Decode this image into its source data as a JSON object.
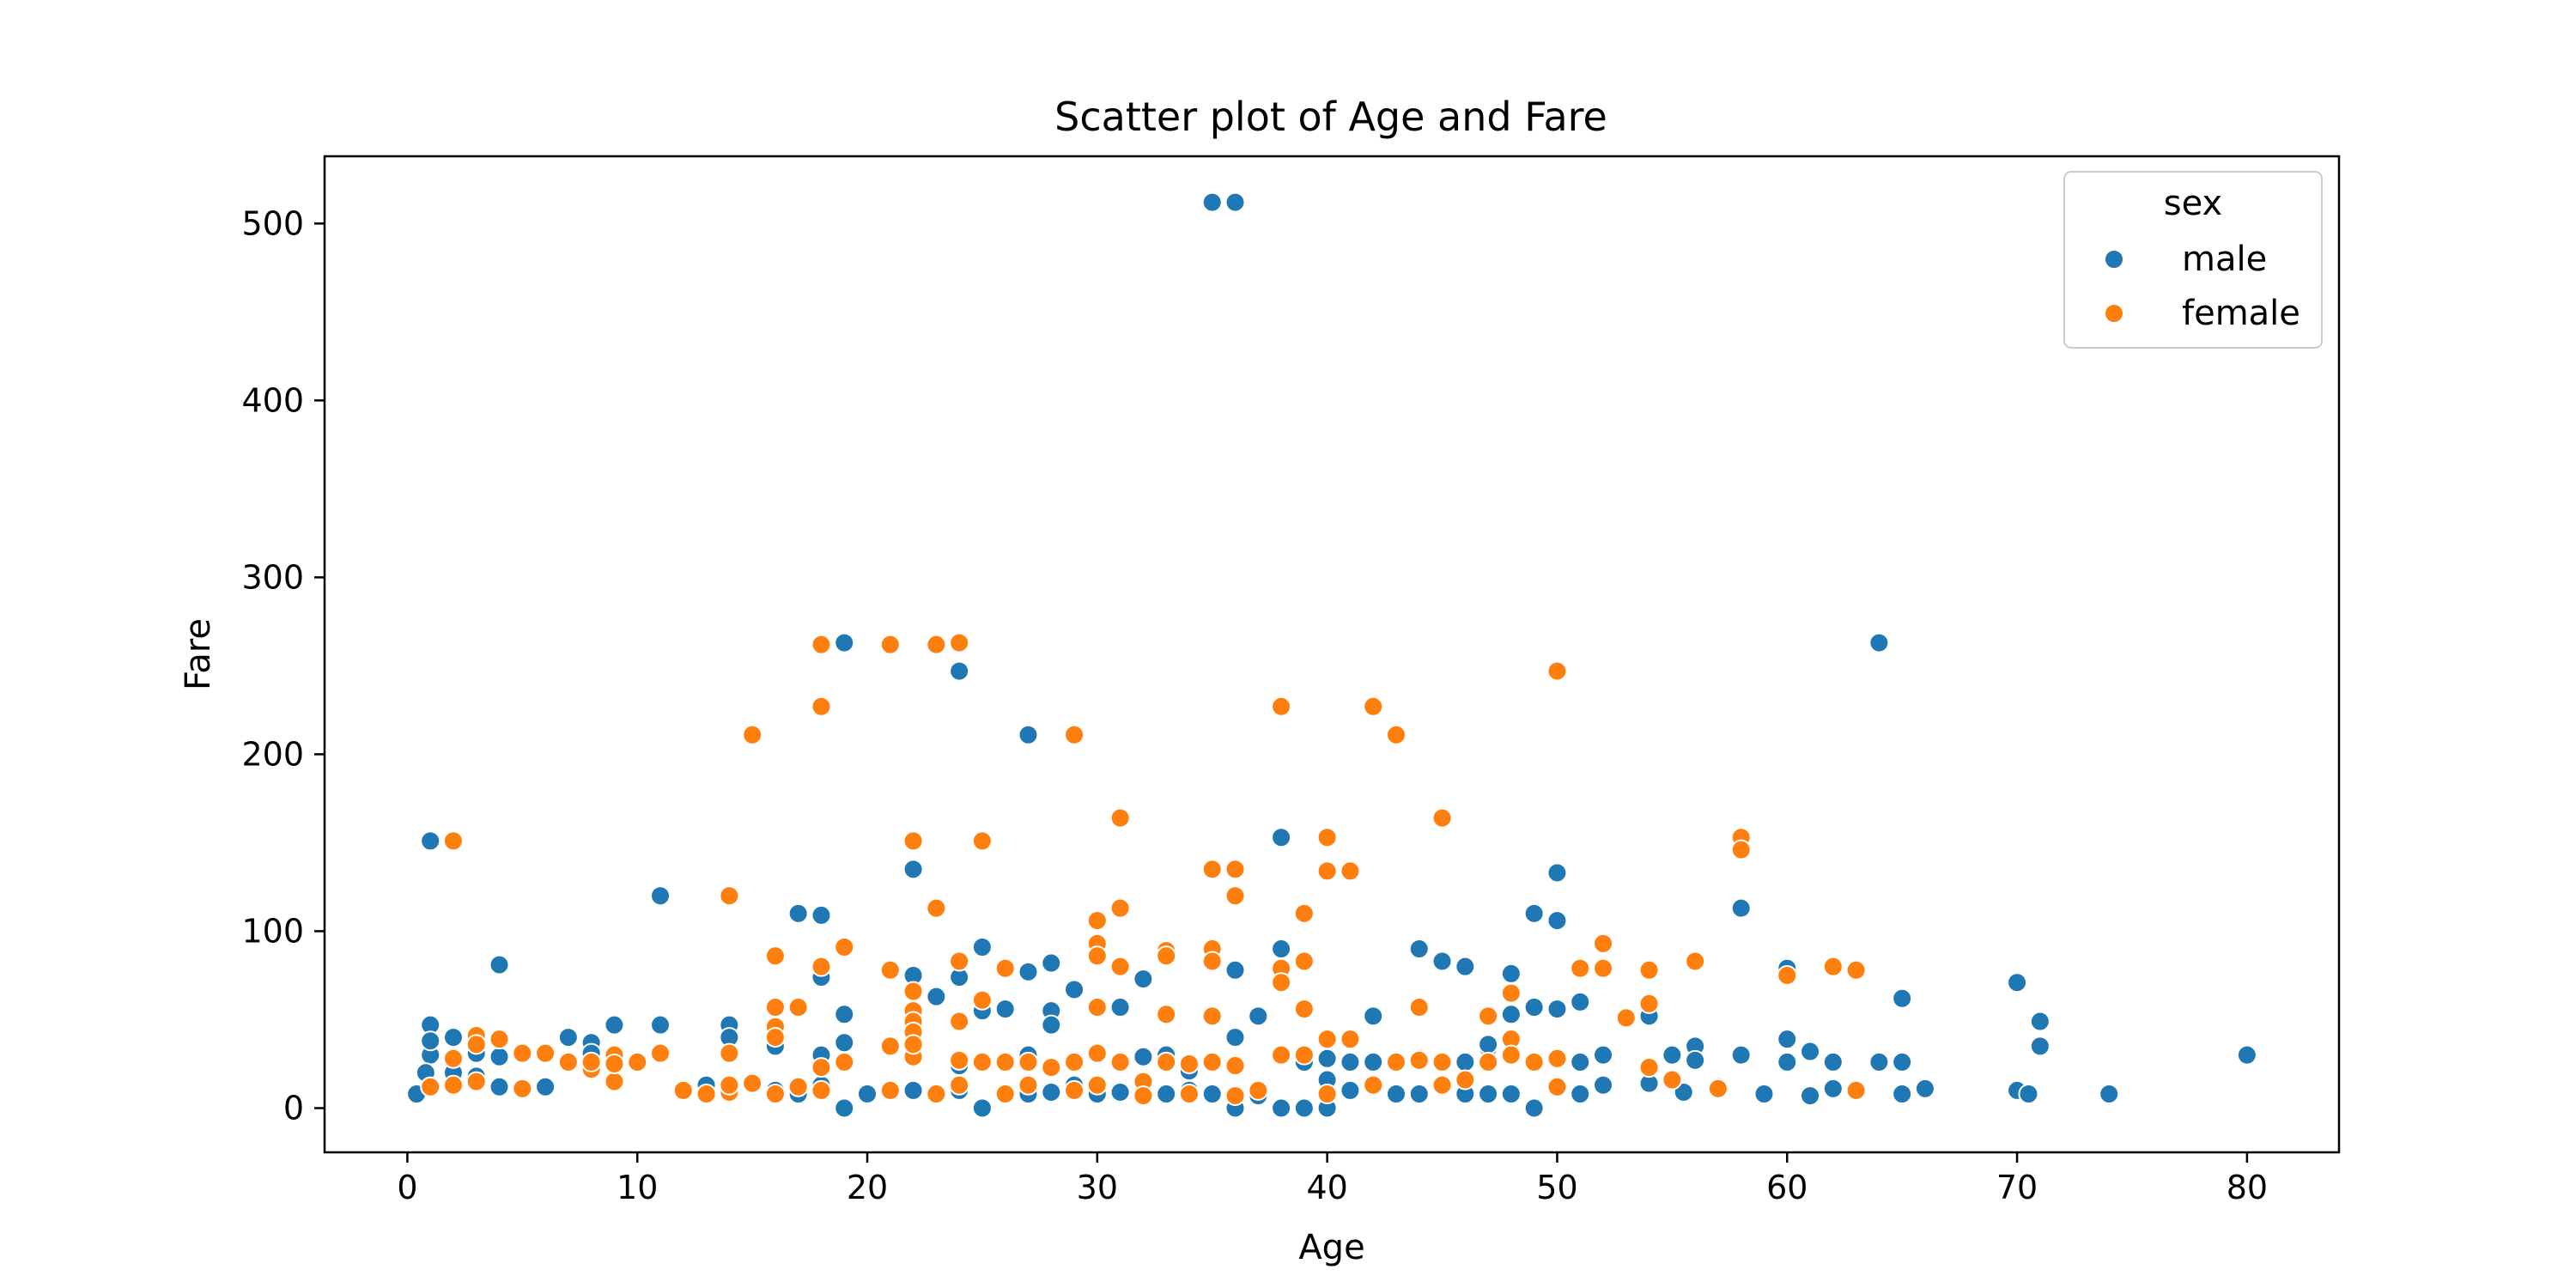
{
  "chart_data": {
    "type": "scatter",
    "title": "Scatter plot of Age and Fare",
    "xlabel": "Age",
    "ylabel": "Fare",
    "xlim": [
      -3.6,
      84
    ],
    "ylim": [
      -25,
      538
    ],
    "xticks": [
      0,
      10,
      20,
      30,
      40,
      50,
      60,
      70,
      80
    ],
    "yticks": [
      0,
      100,
      200,
      300,
      400,
      500
    ],
    "grid": false,
    "legend": {
      "title": "sex",
      "position": "top-right"
    },
    "series": [
      {
        "name": "male",
        "color": "#1f77b4",
        "points": [
          [
            35,
            512
          ],
          [
            36,
            512
          ],
          [
            19,
            263
          ],
          [
            64,
            263
          ],
          [
            24,
            247
          ],
          [
            27,
            211
          ],
          [
            1,
            151
          ],
          [
            38,
            153
          ],
          [
            22,
            135
          ],
          [
            50,
            133
          ],
          [
            11,
            120
          ],
          [
            17,
            110
          ],
          [
            18,
            109
          ],
          [
            58,
            113
          ],
          [
            49,
            110
          ],
          [
            50,
            106
          ],
          [
            25,
            91
          ],
          [
            38,
            90
          ],
          [
            44,
            90
          ],
          [
            4,
            81
          ],
          [
            28,
            82
          ],
          [
            45,
            83
          ],
          [
            27,
            77
          ],
          [
            18,
            74
          ],
          [
            32,
            73
          ],
          [
            60,
            79
          ],
          [
            46,
            80
          ],
          [
            70,
            71
          ],
          [
            48,
            76
          ],
          [
            31,
            57
          ],
          [
            22,
            75
          ],
          [
            23,
            63
          ],
          [
            29,
            67
          ],
          [
            49,
            57
          ],
          [
            51,
            60
          ],
          [
            65,
            62
          ],
          [
            26,
            56
          ],
          [
            28,
            55
          ],
          [
            36,
            78
          ],
          [
            42,
            52
          ],
          [
            19,
            53
          ],
          [
            37,
            52
          ],
          [
            47,
            34
          ],
          [
            71,
            49
          ],
          [
            1,
            47
          ],
          [
            9,
            47
          ],
          [
            11,
            47
          ],
          [
            14,
            47
          ],
          [
            25,
            55
          ],
          [
            33,
            30
          ],
          [
            46,
            26
          ],
          [
            54,
            52
          ],
          [
            71,
            35
          ],
          [
            2,
            40
          ],
          [
            7,
            40
          ],
          [
            8,
            37
          ],
          [
            16,
            35
          ],
          [
            30,
            30
          ],
          [
            40,
            28
          ],
          [
            60,
            39
          ],
          [
            61,
            32
          ],
          [
            56,
            35
          ],
          [
            62,
            26
          ],
          [
            64,
            26
          ],
          [
            65,
            26
          ],
          [
            80,
            30
          ],
          [
            1,
            30
          ],
          [
            3,
            31
          ],
          [
            4,
            29
          ],
          [
            10,
            27
          ],
          [
            13,
            13
          ],
          [
            17,
            8
          ],
          [
            19,
            0
          ],
          [
            20,
            8
          ],
          [
            21,
            10
          ],
          [
            23,
            8
          ],
          [
            24,
            10
          ],
          [
            25,
            0
          ],
          [
            26,
            8
          ],
          [
            27,
            8
          ],
          [
            28,
            9
          ],
          [
            29,
            13
          ],
          [
            30,
            8
          ],
          [
            31,
            9
          ],
          [
            32,
            13
          ],
          [
            33,
            8
          ],
          [
            34,
            10
          ],
          [
            35,
            8
          ],
          [
            36,
            0
          ],
          [
            37,
            7
          ],
          [
            38,
            0
          ],
          [
            39,
            0
          ],
          [
            40,
            0
          ],
          [
            41,
            10
          ],
          [
            42,
            26
          ],
          [
            43,
            8
          ],
          [
            44,
            8
          ],
          [
            45,
            26
          ],
          [
            46,
            8
          ],
          [
            47,
            8
          ],
          [
            48,
            8
          ],
          [
            49,
            0
          ],
          [
            50,
            13
          ],
          [
            51,
            8
          ],
          [
            52,
            13
          ],
          [
            54,
            14
          ],
          [
            55,
            30
          ],
          [
            55.5,
            9
          ],
          [
            57,
            12
          ],
          [
            59,
            8
          ],
          [
            60,
            26
          ],
          [
            61,
            7
          ],
          [
            62,
            11
          ],
          [
            65,
            8
          ],
          [
            66,
            11
          ],
          [
            70,
            10
          ],
          [
            70.5,
            8
          ],
          [
            74,
            8
          ],
          [
            0.4,
            8
          ],
          [
            0.8,
            20
          ],
          [
            2,
            20
          ],
          [
            3,
            18
          ],
          [
            4,
            12
          ],
          [
            6,
            12
          ],
          [
            8,
            31
          ],
          [
            12,
            11
          ],
          [
            14,
            40
          ],
          [
            16,
            10
          ],
          [
            18,
            13
          ],
          [
            19,
            37
          ],
          [
            22,
            10
          ],
          [
            24,
            74
          ],
          [
            28,
            47
          ],
          [
            32,
            29
          ],
          [
            34,
            21
          ],
          [
            36,
            40
          ],
          [
            39,
            26
          ],
          [
            41,
            26
          ],
          [
            44,
            28
          ],
          [
            47,
            36
          ],
          [
            51,
            26
          ],
          [
            52,
            30
          ],
          [
            56,
            27
          ],
          [
            58,
            30
          ],
          [
            62,
            26
          ],
          [
            1,
            38
          ],
          [
            33,
            26
          ],
          [
            27,
            30
          ],
          [
            15,
            15
          ],
          [
            35,
            26
          ],
          [
            31,
            27
          ],
          [
            48,
            53
          ],
          [
            50,
            56
          ],
          [
            24,
            24
          ],
          [
            40,
            16
          ],
          [
            18,
            30
          ]
        ]
      },
      {
        "name": "female",
        "color": "#ff7f0e",
        "points": [
          [
            18,
            262
          ],
          [
            21,
            262
          ],
          [
            23,
            262
          ],
          [
            24,
            263
          ],
          [
            50,
            247
          ],
          [
            15,
            211
          ],
          [
            29,
            211
          ],
          [
            43,
            211
          ],
          [
            18,
            227
          ],
          [
            38,
            227
          ],
          [
            42,
            227
          ],
          [
            2,
            151
          ],
          [
            22,
            151
          ],
          [
            25,
            151
          ],
          [
            58,
            153
          ],
          [
            58,
            146
          ],
          [
            31,
            164
          ],
          [
            45,
            164
          ],
          [
            40,
            153
          ],
          [
            35,
            135
          ],
          [
            36,
            135
          ],
          [
            40,
            134
          ],
          [
            41,
            134
          ],
          [
            14,
            120
          ],
          [
            36,
            120
          ],
          [
            23,
            113
          ],
          [
            31,
            113
          ],
          [
            39,
            110
          ],
          [
            30,
            106
          ],
          [
            33,
            89
          ],
          [
            19,
            91
          ],
          [
            16,
            86
          ],
          [
            30,
            93
          ],
          [
            52,
            93
          ],
          [
            35,
            90
          ],
          [
            18,
            80
          ],
          [
            24,
            83
          ],
          [
            26,
            79
          ],
          [
            30,
            86
          ],
          [
            33,
            86
          ],
          [
            35,
            83
          ],
          [
            38,
            79
          ],
          [
            39,
            83
          ],
          [
            51,
            79
          ],
          [
            52,
            79
          ],
          [
            54,
            78
          ],
          [
            56,
            83
          ],
          [
            62,
            80
          ],
          [
            63,
            78
          ],
          [
            60,
            75
          ],
          [
            21,
            78
          ],
          [
            38,
            71
          ],
          [
            48,
            65
          ],
          [
            22,
            66
          ],
          [
            16,
            57
          ],
          [
            17,
            57
          ],
          [
            22,
            55
          ],
          [
            25,
            61
          ],
          [
            30,
            57
          ],
          [
            33,
            53
          ],
          [
            35,
            52
          ],
          [
            39,
            56
          ],
          [
            44,
            57
          ],
          [
            47,
            52
          ],
          [
            53,
            51
          ],
          [
            54,
            59
          ],
          [
            22,
            49
          ],
          [
            24,
            49
          ],
          [
            22,
            43
          ],
          [
            16,
            46
          ],
          [
            14,
            31
          ],
          [
            3,
            41
          ],
          [
            4,
            39
          ],
          [
            2,
            28
          ],
          [
            5,
            31
          ],
          [
            6,
            31
          ],
          [
            7,
            26
          ],
          [
            8,
            22
          ],
          [
            9,
            30
          ],
          [
            10,
            26
          ],
          [
            11,
            31
          ],
          [
            13,
            8
          ],
          [
            14,
            9
          ],
          [
            15,
            14
          ],
          [
            16,
            40
          ],
          [
            18,
            23
          ],
          [
            19,
            26
          ],
          [
            21,
            35
          ],
          [
            22,
            29
          ],
          [
            24,
            27
          ],
          [
            25,
            26
          ],
          [
            26,
            26
          ],
          [
            27,
            26
          ],
          [
            28,
            23
          ],
          [
            29,
            26
          ],
          [
            30,
            31
          ],
          [
            31,
            26
          ],
          [
            32,
            15
          ],
          [
            33,
            26
          ],
          [
            34,
            25
          ],
          [
            35,
            26
          ],
          [
            36,
            24
          ],
          [
            37,
            10
          ],
          [
            38,
            30
          ],
          [
            39,
            30
          ],
          [
            40,
            39
          ],
          [
            41,
            39
          ],
          [
            42,
            13
          ],
          [
            43,
            26
          ],
          [
            44,
            27
          ],
          [
            45,
            13
          ],
          [
            47,
            26
          ],
          [
            48,
            39
          ],
          [
            49,
            26
          ],
          [
            50,
            28
          ],
          [
            54,
            23
          ],
          [
            55,
            16
          ],
          [
            57,
            11
          ],
          [
            63,
            10
          ],
          [
            1,
            12
          ],
          [
            2,
            13
          ],
          [
            3,
            15
          ],
          [
            5,
            11
          ],
          [
            8,
            26
          ],
          [
            9,
            15
          ],
          [
            14,
            13
          ],
          [
            16,
            8
          ],
          [
            18,
            10
          ],
          [
            21,
            10
          ],
          [
            23,
            8
          ],
          [
            24,
            13
          ],
          [
            26,
            8
          ],
          [
            27,
            13
          ],
          [
            29,
            10
          ],
          [
            30,
            13
          ],
          [
            32,
            7
          ],
          [
            34,
            8
          ],
          [
            36,
            7
          ],
          [
            40,
            8
          ],
          [
            42,
            13
          ],
          [
            45,
            26
          ],
          [
            48,
            30
          ],
          [
            50,
            12
          ],
          [
            3,
            36
          ],
          [
            9,
            25
          ],
          [
            22,
            36
          ],
          [
            31,
            80
          ],
          [
            12,
            10
          ],
          [
            17,
            12
          ],
          [
            46,
            16
          ]
        ]
      }
    ]
  }
}
